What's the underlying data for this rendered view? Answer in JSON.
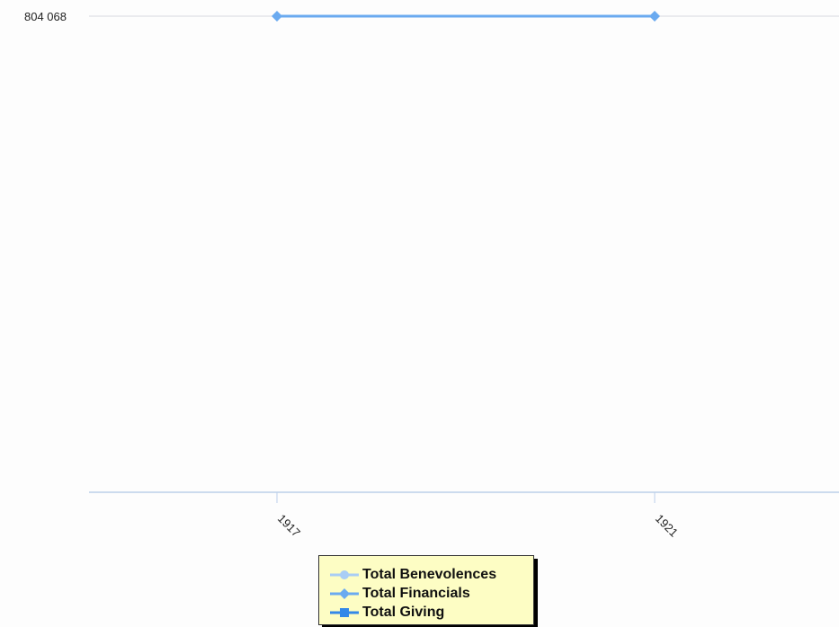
{
  "chart_data": {
    "type": "line",
    "title": "",
    "xlabel": "",
    "ylabel": "",
    "x": [
      "1917",
      "1921"
    ],
    "y_tick_labels": [
      "804 068"
    ],
    "series": [
      {
        "name": "Total Benevolences",
        "marker": "circle",
        "color": "#a9cdf5",
        "values": [
          null,
          null
        ]
      },
      {
        "name": "Total Financials",
        "marker": "diamond",
        "color": "#6aaaf0",
        "values": [
          804068,
          804068
        ]
      },
      {
        "name": "Total Giving",
        "marker": "square",
        "color": "#3388e8",
        "values": [
          null,
          null
        ]
      }
    ],
    "grid": true,
    "legend_position": "bottom"
  }
}
